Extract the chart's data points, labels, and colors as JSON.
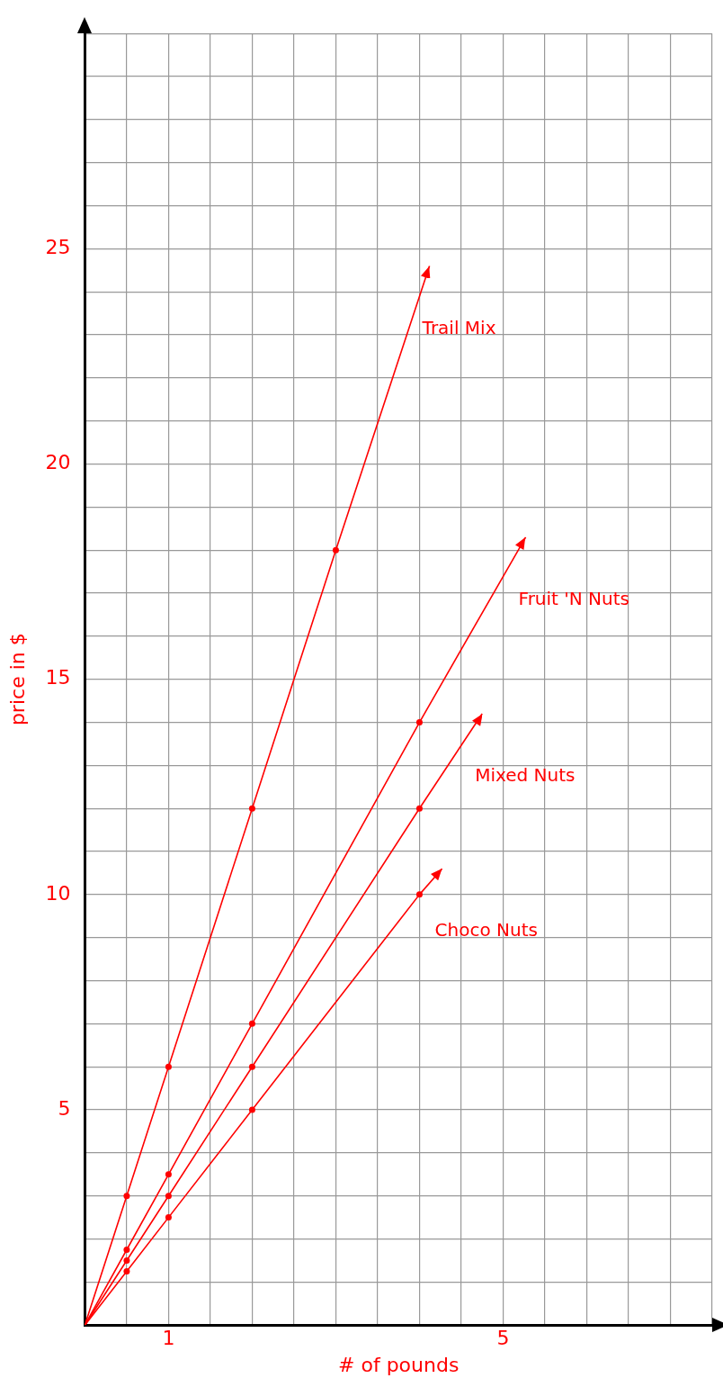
{
  "chart_data": {
    "type": "line",
    "xlabel": "# of pounds",
    "ylabel": "price in $",
    "xlim": [
      0,
      7.5
    ],
    "ylim": [
      0,
      30
    ],
    "xticks": [
      {
        "value": 0,
        "label": null
      },
      {
        "value": 0.5,
        "label": null
      },
      1,
      {
        "value": 1.5,
        "label": null
      },
      {
        "value": 2,
        "label": null
      },
      {
        "value": 2.5,
        "label": null
      },
      {
        "value": 3,
        "label": null
      },
      {
        "value": 3.5,
        "label": null
      },
      {
        "value": 4,
        "label": null
      },
      {
        "value": 4.5,
        "label": null
      },
      5,
      {
        "value": 5.5,
        "label": null
      },
      {
        "value": 6,
        "label": null
      },
      {
        "value": 6.5,
        "label": null
      },
      {
        "value": 7,
        "label": null
      },
      {
        "value": 7.5,
        "label": null
      }
    ],
    "yticks": [
      {
        "value": 0,
        "label": null
      },
      {
        "value": 1,
        "label": null
      },
      {
        "value": 2,
        "label": null
      },
      {
        "value": 3,
        "label": null
      },
      {
        "value": 4,
        "label": null
      },
      5,
      {
        "value": 6,
        "label": null
      },
      {
        "value": 7,
        "label": null
      },
      {
        "value": 8,
        "label": null
      },
      {
        "value": 9,
        "label": null
      },
      10,
      {
        "value": 11,
        "label": null
      },
      {
        "value": 12,
        "label": null
      },
      {
        "value": 13,
        "label": null
      },
      {
        "value": 14,
        "label": null
      },
      15,
      {
        "value": 16,
        "label": null
      },
      {
        "value": 17,
        "label": null
      },
      {
        "value": 18,
        "label": null
      },
      {
        "value": 19,
        "label": null
      },
      20,
      {
        "value": 21,
        "label": null
      },
      {
        "value": 22,
        "label": null
      },
      {
        "value": 23,
        "label": null
      },
      {
        "value": 24,
        "label": null
      },
      25,
      {
        "value": 26,
        "label": null
      },
      {
        "value": 27,
        "label": null
      },
      {
        "value": 28,
        "label": null
      },
      {
        "value": 29,
        "label": null
      },
      {
        "value": 30,
        "label": null
      }
    ],
    "grid": true,
    "legend": false,
    "marker": "circle",
    "line_style": "solid",
    "series": [
      {
        "name": "Trail Mix",
        "color": "#ff0000",
        "x": [
          0,
          0.5,
          1,
          2,
          3,
          4.12
        ],
        "values": [
          0,
          3,
          6,
          12,
          18,
          24.6
        ]
      },
      {
        "name": "Fruit 'N Nuts",
        "color": "#ff0000",
        "x": [
          0,
          0.5,
          1,
          2,
          4,
          5.27
        ],
        "values": [
          0,
          1.75,
          3.5,
          7,
          14,
          18.3
        ]
      },
      {
        "name": "Mixed Nuts",
        "color": "#ff0000",
        "x": [
          0,
          0.5,
          1,
          2,
          4,
          4.75
        ],
        "values": [
          0,
          1.5,
          3,
          6,
          12,
          14.2
        ]
      },
      {
        "name": "Choco Nuts",
        "color": "#ff0000",
        "x": [
          0,
          0.5,
          1,
          2,
          4,
          4.27
        ],
        "values": [
          0,
          1.25,
          2.5,
          5,
          10,
          10.6
        ]
      }
    ]
  }
}
